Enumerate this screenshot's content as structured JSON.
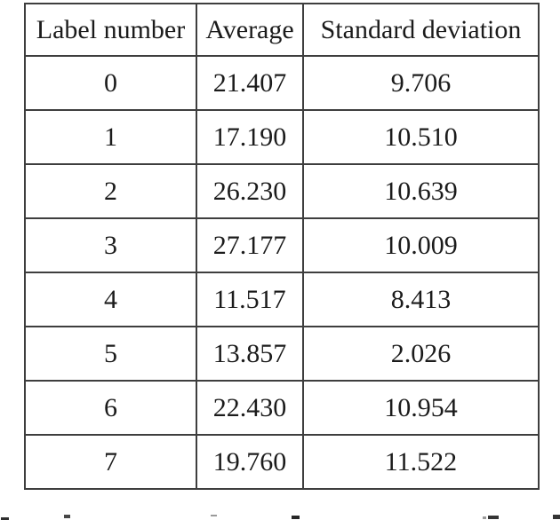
{
  "colors": {
    "background": "#ffffff",
    "border": "#3e3e3e",
    "text": "#1b1b1b"
  },
  "table": {
    "headers": [
      "Label number",
      "Average",
      "Standard deviation"
    ],
    "rows": [
      [
        "0",
        "21.407",
        "9.706"
      ],
      [
        "1",
        "17.190",
        "10.510"
      ],
      [
        "2",
        "26.230",
        "10.639"
      ],
      [
        "3",
        "27.177",
        "10.009"
      ],
      [
        "4",
        "11.517",
        "8.413"
      ],
      [
        "5",
        "13.857",
        "2.026"
      ],
      [
        "6",
        "22.430",
        "10.954"
      ],
      [
        "7",
        "19.760",
        "11.522"
      ]
    ]
  },
  "chart_data": {
    "type": "table",
    "columns": [
      "Label number",
      "Average",
      "Standard deviation"
    ],
    "rows": [
      [
        0,
        21.407,
        9.706
      ],
      [
        1,
        17.19,
        10.51
      ],
      [
        2,
        26.23,
        10.639
      ],
      [
        3,
        27.177,
        10.009
      ],
      [
        4,
        11.517,
        8.413
      ],
      [
        5,
        13.857,
        2.026
      ],
      [
        6,
        22.43,
        10.954
      ],
      [
        7,
        19.76,
        11.522
      ]
    ]
  }
}
